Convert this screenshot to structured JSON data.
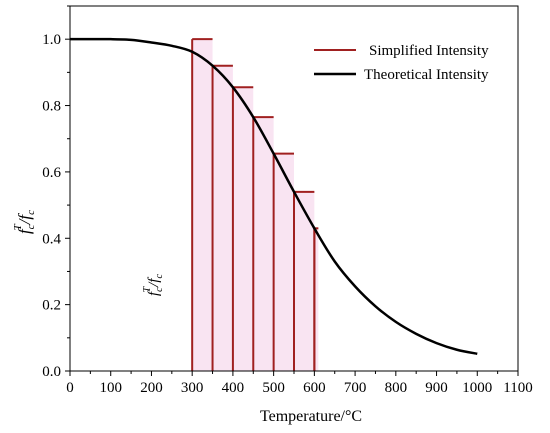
{
  "chart_data": {
    "type": "line",
    "title": "",
    "xlabel": "Temperature/°C",
    "ylabel_main": "f",
    "ylabel_sup": "T",
    "ylabel_sub": "c",
    "xlim": [
      0,
      1100
    ],
    "ylim": [
      0,
      1.1
    ],
    "x_ticks": [
      "0",
      "100",
      "200",
      "300",
      "400",
      "500",
      "600",
      "700",
      "800",
      "900",
      "1000",
      "1100"
    ],
    "y_ticks": [
      "0.0",
      "0.2",
      "0.4",
      "0.6",
      "0.8",
      "1.0"
    ],
    "x_tick_values": [
      0,
      100,
      200,
      300,
      400,
      500,
      600,
      700,
      800,
      900,
      1000,
      1100
    ],
    "y_tick_values": [
      0,
      0.2,
      0.4,
      0.6,
      0.8,
      1.0
    ],
    "legend_position": "top-right",
    "colors": {
      "simplified": "#a02020",
      "theoretical": "#000000",
      "fill": "#f7d8ec"
    },
    "series": [
      {
        "name": "Simplified Intensity",
        "style": "step",
        "x_edges": [
          300,
          350,
          400,
          450,
          500,
          550,
          600
        ],
        "values": [
          1.0,
          0.92,
          0.855,
          0.765,
          0.655,
          0.54,
          0.43
        ]
      },
      {
        "name": "Theoretical Intensity",
        "style": "line",
        "x": [
          0,
          100,
          150,
          200,
          250,
          300,
          350,
          400,
          450,
          500,
          550,
          600,
          650,
          700,
          750,
          800,
          850,
          900,
          950,
          1000
        ],
        "y": [
          1.0,
          1.0,
          0.998,
          0.99,
          0.98,
          0.962,
          0.92,
          0.855,
          0.765,
          0.655,
          0.54,
          0.43,
          0.33,
          0.255,
          0.195,
          0.148,
          0.112,
          0.084,
          0.064,
          0.052
        ]
      }
    ]
  }
}
